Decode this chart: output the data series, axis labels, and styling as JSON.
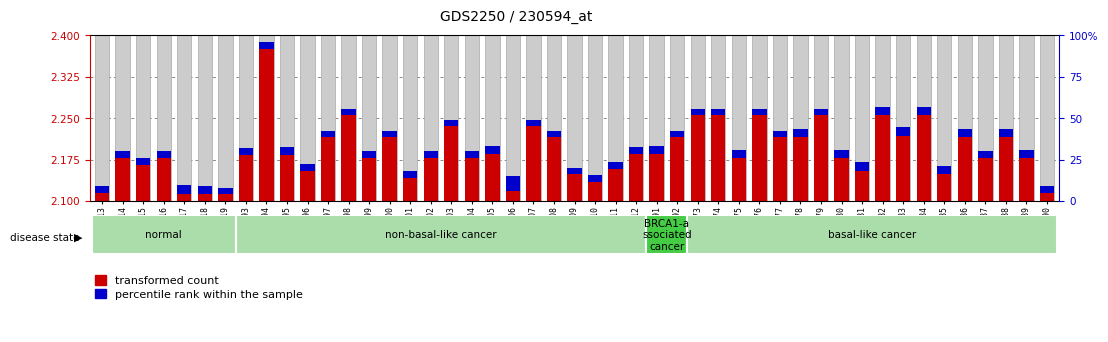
{
  "title": "GDS2250 / 230594_at",
  "samples": [
    "GSM85513",
    "GSM85514",
    "GSM85515",
    "GSM85516",
    "GSM85517",
    "GSM85518",
    "GSM85519",
    "GSM85493",
    "GSM85494",
    "GSM85495",
    "GSM85496",
    "GSM85497",
    "GSM85498",
    "GSM85499",
    "GSM85500",
    "GSM85501",
    "GSM85502",
    "GSM85503",
    "GSM85504",
    "GSM85505",
    "GSM85506",
    "GSM85507",
    "GSM85508",
    "GSM85509",
    "GSM85510",
    "GSM85511",
    "GSM85512",
    "GSM85491",
    "GSM85492",
    "GSM85473",
    "GSM85474",
    "GSM85475",
    "GSM85476",
    "GSM85477",
    "GSM85478",
    "GSM85479",
    "GSM85480",
    "GSM85481",
    "GSM85482",
    "GSM85483",
    "GSM85484",
    "GSM85485",
    "GSM85486",
    "GSM85487",
    "GSM85488",
    "GSM85489",
    "GSM85490"
  ],
  "red_values": [
    2.115,
    2.178,
    2.165,
    2.178,
    2.113,
    2.112,
    2.112,
    2.183,
    2.375,
    2.183,
    2.155,
    2.215,
    2.255,
    2.178,
    2.215,
    2.142,
    2.178,
    2.235,
    2.178,
    2.185,
    2.118,
    2.235,
    2.215,
    2.148,
    2.135,
    2.158,
    2.185,
    2.185,
    2.215,
    2.255,
    2.255,
    2.178,
    2.255,
    2.215,
    2.215,
    2.255,
    2.178,
    2.155,
    2.255,
    2.218,
    2.255,
    2.148,
    2.215,
    2.178,
    2.215,
    2.178,
    2.115
  ],
  "blue_values": [
    0.012,
    0.012,
    0.012,
    0.012,
    0.015,
    0.015,
    0.012,
    0.012,
    0.012,
    0.015,
    0.012,
    0.012,
    0.012,
    0.012,
    0.012,
    0.012,
    0.012,
    0.012,
    0.012,
    0.015,
    0.028,
    0.012,
    0.012,
    0.012,
    0.012,
    0.012,
    0.012,
    0.015,
    0.012,
    0.012,
    0.012,
    0.015,
    0.012,
    0.012,
    0.015,
    0.012,
    0.015,
    0.015,
    0.015,
    0.015,
    0.015,
    0.015,
    0.015,
    0.012,
    0.015,
    0.015,
    0.012
  ],
  "groups": [
    {
      "label": "normal",
      "start": 0,
      "end": 7,
      "color": "#aaddaa"
    },
    {
      "label": "non-basal-like cancer",
      "start": 7,
      "end": 27,
      "color": "#aaddaa"
    },
    {
      "label": "BRCA1-a\nssociated\ncancer",
      "start": 27,
      "end": 29,
      "color": "#44cc44"
    },
    {
      "label": "basal-like cancer",
      "start": 29,
      "end": 47,
      "color": "#aaddaa"
    }
  ],
  "ylim_left": [
    2.1,
    2.4
  ],
  "yticks_left": [
    2.1,
    2.175,
    2.25,
    2.325,
    2.4
  ],
  "yticks_right": [
    0,
    25,
    50,
    75,
    100
  ],
  "red_color": "#cc0000",
  "blue_color": "#0000cc",
  "bar_edge_color": "#999999",
  "tick_label_color_left": "#cc0000",
  "tick_label_color_right": "#0000cc",
  "background_bar": "#cccccc",
  "dotted_line_color": "#888888",
  "base": 2.1,
  "ymax": 2.4
}
